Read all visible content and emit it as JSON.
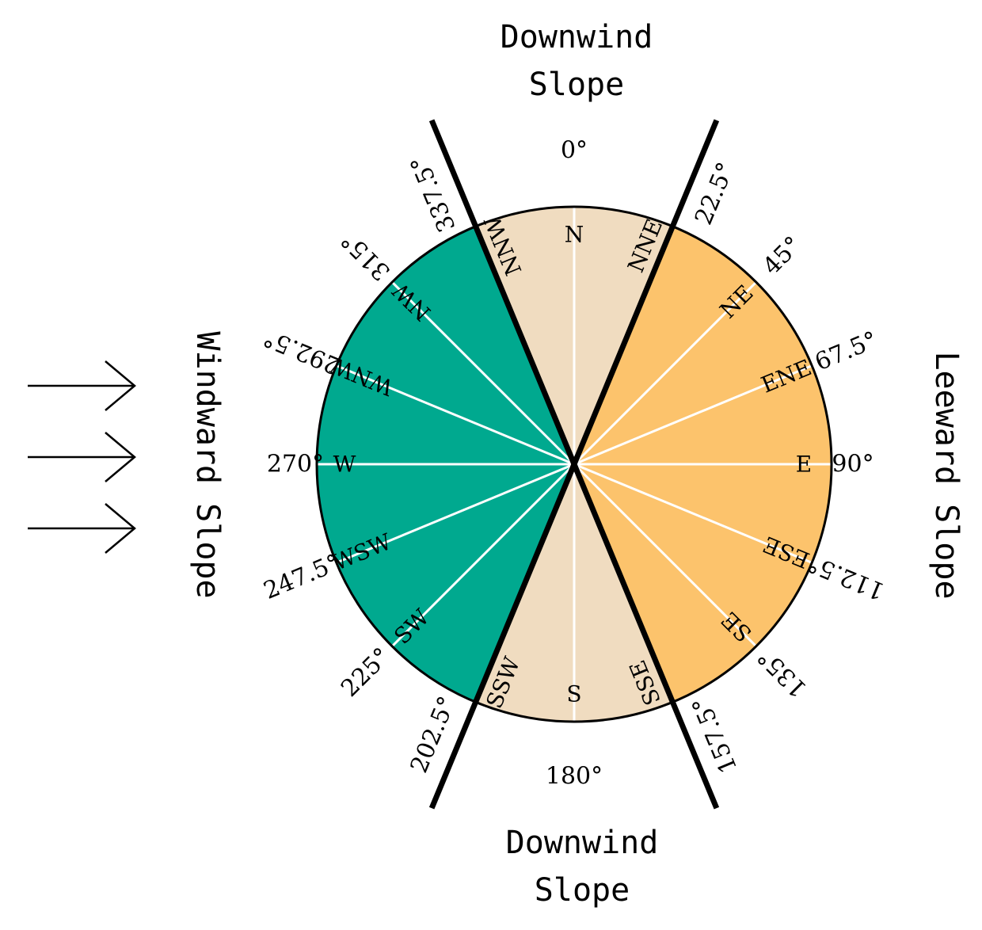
{
  "colors": {
    "windward": "#00a98f",
    "leeward": "#fcc36c",
    "downwind": "#f0dcc0",
    "outline": "#000000",
    "divider": "#ffffff",
    "boundary": "#000000"
  },
  "regions": {
    "top": [
      "Downwind",
      "Slope"
    ],
    "bottom": [
      "Downwind",
      "Slope"
    ],
    "left": "Windward Slope",
    "right": "Leeward Slope"
  },
  "wind_arrows": {
    "count": 3,
    "direction": "east"
  },
  "sectors": [
    {
      "from": 337.5,
      "to": 22.5,
      "zone": "downwind"
    },
    {
      "from": 22.5,
      "to": 157.5,
      "zone": "leeward"
    },
    {
      "from": 157.5,
      "to": 202.5,
      "zone": "downwind"
    },
    {
      "from": 202.5,
      "to": 337.5,
      "zone": "windward"
    }
  ],
  "boundaries": [
    22.5,
    157.5,
    202.5,
    337.5
  ],
  "directions": [
    {
      "code": "N",
      "deg": 0,
      "label": "0°"
    },
    {
      "code": "NNE",
      "deg": 22.5,
      "label": "22.5°"
    },
    {
      "code": "NE",
      "deg": 45,
      "label": "45°"
    },
    {
      "code": "ENE",
      "deg": 67.5,
      "label": "67.5°"
    },
    {
      "code": "E",
      "deg": 90,
      "label": "90°"
    },
    {
      "code": "ESE",
      "deg": 112.5,
      "label": "112.5°"
    },
    {
      "code": "SE",
      "deg": 135,
      "label": "135°"
    },
    {
      "code": "SSE",
      "deg": 157.5,
      "label": "157.5°"
    },
    {
      "code": "S",
      "deg": 180,
      "label": "180°"
    },
    {
      "code": "SSW",
      "deg": 202.5,
      "label": "202.5°"
    },
    {
      "code": "SW",
      "deg": 225,
      "label": "225°"
    },
    {
      "code": "WSW",
      "deg": 247.5,
      "label": "247.5°"
    },
    {
      "code": "W",
      "deg": 270,
      "label": "270°"
    },
    {
      "code": "WNW",
      "deg": 292.5,
      "label": "292.5°"
    },
    {
      "code": "NW",
      "deg": 315,
      "label": "315°"
    },
    {
      "code": "NNW",
      "deg": 337.5,
      "label": "337.5°"
    }
  ]
}
